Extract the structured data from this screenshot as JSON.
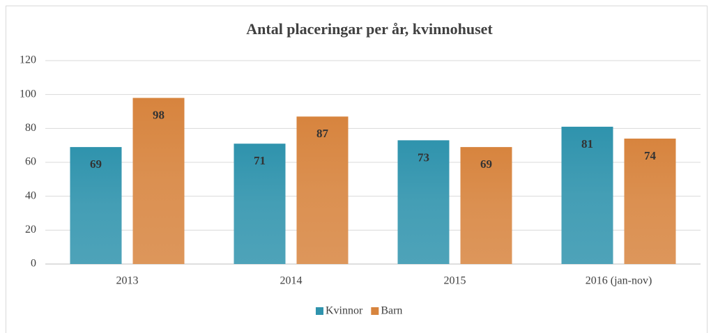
{
  "chart_data": {
    "type": "bar",
    "title": "Antal placeringar per år, kvinnohuset",
    "categories": [
      "2013",
      "2014",
      "2015",
      "2016 (jan-nov)"
    ],
    "series": [
      {
        "name": "Kvinnor",
        "color": "#2f93ad",
        "values": [
          69,
          71,
          73,
          81
        ]
      },
      {
        "name": "Barn",
        "color": "#d7843e",
        "values": [
          98,
          87,
          69,
          74
        ]
      }
    ],
    "ylim": [
      0,
      120
    ],
    "yticks": [
      0,
      20,
      40,
      60,
      80,
      100,
      120
    ],
    "grid": true,
    "legend": "bottom"
  }
}
